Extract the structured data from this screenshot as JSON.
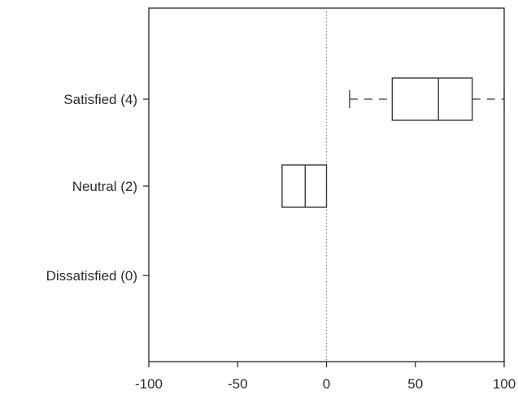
{
  "chart_data": {
    "type": "box",
    "title": "",
    "xlabel": "",
    "ylabel": "",
    "xlim": [
      -100,
      100
    ],
    "xticks": [
      -100,
      -50,
      0,
      50,
      100
    ],
    "xtick_labels": [
      "-100",
      "-50",
      "0",
      "50",
      "100"
    ],
    "reference_line": 0,
    "categories": [
      "Satisfied (4)",
      "Neutral (2)",
      "Dissatisfied (0)"
    ],
    "boxes": [
      {
        "category": "Satisfied (4)",
        "whisker_low": 13,
        "q1": 37,
        "median": 63,
        "q3": 82,
        "whisker_high": 100
      },
      {
        "category": "Neutral (2)",
        "whisker_low": -25,
        "q1": -25,
        "median": -12,
        "q3": 0,
        "whisker_high": 0
      },
      {
        "category": "Dissatisfied (0)"
      }
    ],
    "colors": {
      "box_stroke": "#3a3a3a",
      "axis": "#222222",
      "reference": "#8a8a8a"
    }
  }
}
